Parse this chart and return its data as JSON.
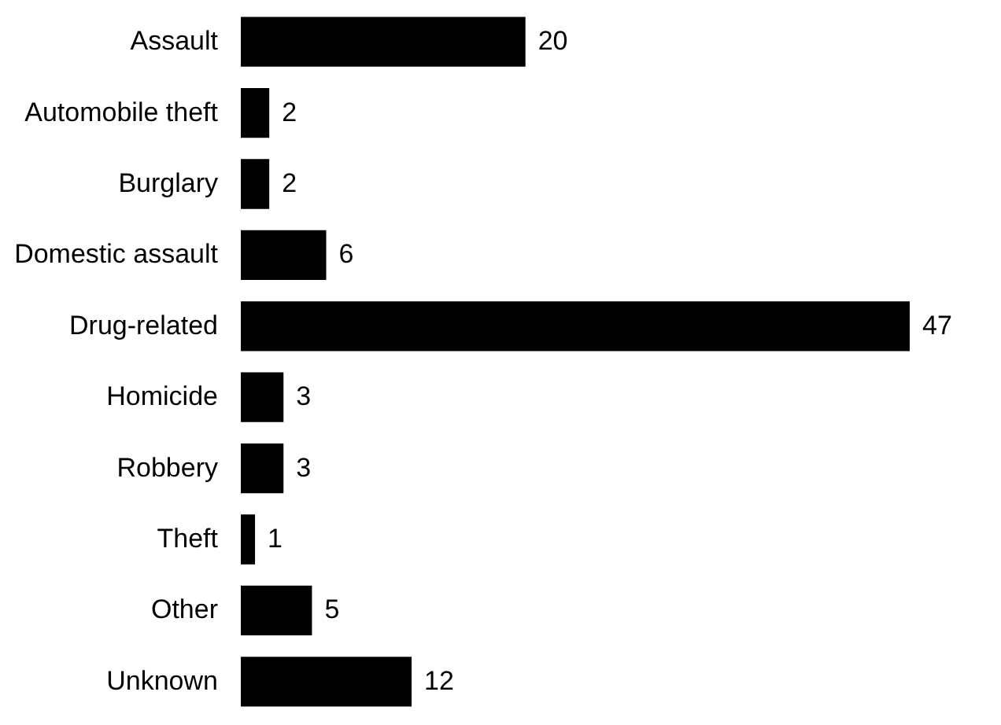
{
  "chart_data": {
    "type": "bar",
    "orientation": "horizontal",
    "categories": [
      "Assault",
      "Automobile theft",
      "Burglary",
      "Domestic assault",
      "Drug-related",
      "Homicide",
      "Robbery",
      "Theft",
      "Other",
      "Unknown"
    ],
    "values": [
      20,
      2,
      2,
      6,
      47,
      3,
      3,
      1,
      5,
      12
    ],
    "color": "#000000",
    "data_labels": true
  }
}
